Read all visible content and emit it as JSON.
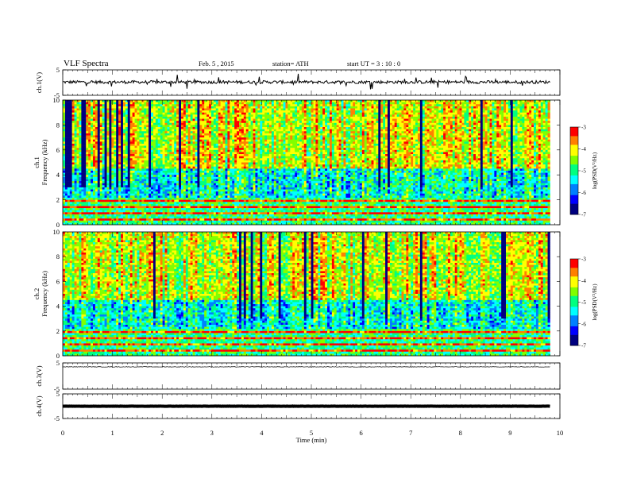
{
  "header": {
    "title": "VLF Spectra",
    "date": "Feb. 5 , 2015",
    "station": "station= ATH",
    "start": "start UT = 3 : 10 : 0"
  },
  "colors": {
    "colormap": [
      "#000080",
      "#0000ff",
      "#0080ff",
      "#00ffff",
      "#00ff80",
      "#80ff00",
      "#ffff00",
      "#ff8000",
      "#ff0000",
      "#ffffff"
    ]
  },
  "chart_data": [
    {
      "type": "line",
      "panel": "ch1-waveform",
      "ylabel": "ch.1(V)",
      "ylim": [
        -5,
        5
      ],
      "yticks": [
        "5",
        "-5"
      ],
      "baseline_v": 0.2,
      "noise_v": 0.6
    },
    {
      "type": "heatmap",
      "panel": "ch1-spectrogram",
      "ylabel": "ch.1 Frequency (kHz)",
      "ylim": [
        0,
        10
      ],
      "yticks": [
        "0",
        "2",
        "4",
        "6",
        "8",
        "10"
      ],
      "xlim_min": [
        0,
        9.8
      ],
      "colorbar": {
        "label": "log(PSD(V²/Hz)",
        "range": [
          -7,
          -3
        ],
        "ticks": [
          "-3",
          "-4",
          "-5",
          "-6",
          "-7"
        ]
      }
    },
    {
      "type": "heatmap",
      "panel": "ch2-spectrogram",
      "ylabel": "ch.2 Frequency (kHz)",
      "ylim": [
        0,
        10
      ],
      "yticks": [
        "0",
        "2",
        "4",
        "6",
        "8",
        "10"
      ],
      "xlim_min": [
        0,
        9.8
      ],
      "colorbar": {
        "label": "log(PSD(V²/Hz)",
        "range": [
          -7,
          -3
        ],
        "ticks": [
          "-3",
          "-4",
          "-5",
          "-6",
          "-7"
        ]
      }
    },
    {
      "type": "line",
      "panel": "ch3-waveform",
      "ylabel": "ch.3(V)",
      "ylim": [
        -5,
        5
      ],
      "yticks": [
        "5",
        "-5"
      ],
      "baseline_v": 3.5,
      "noise_v": 0.1
    },
    {
      "type": "line",
      "panel": "ch4-waveform",
      "ylabel": "ch.4(V)",
      "ylim": [
        -5,
        5
      ],
      "yticks": [
        "5",
        "-5"
      ],
      "baseline_v": 0.0,
      "noise_v": 0.05
    }
  ],
  "xaxis": {
    "label": "Time (min)",
    "range": [
      0,
      10
    ],
    "ticks": [
      "0",
      "1",
      "2",
      "3",
      "4",
      "5",
      "6",
      "7",
      "8",
      "9",
      "10"
    ]
  }
}
